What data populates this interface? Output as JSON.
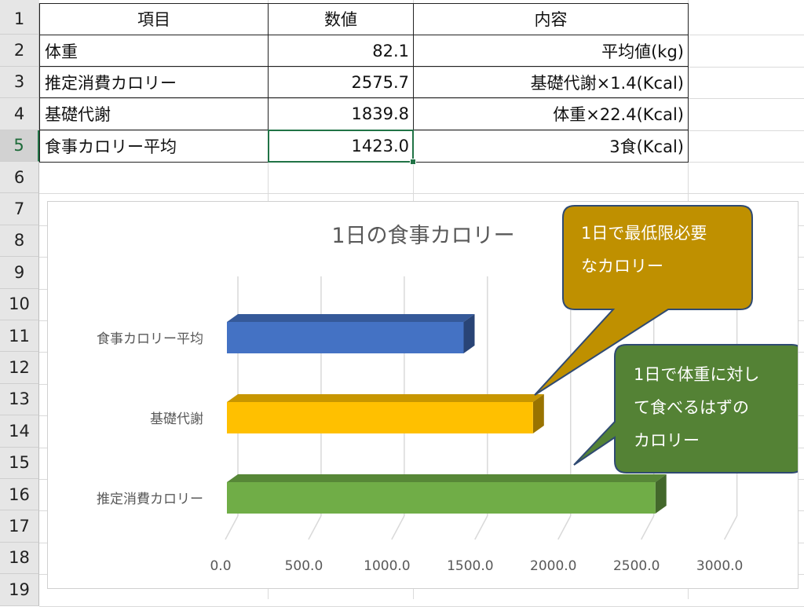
{
  "row_headers": [
    "1",
    "2",
    "3",
    "4",
    "5",
    "6",
    "7",
    "8",
    "9",
    "10",
    "11",
    "12",
    "13",
    "14",
    "15",
    "16",
    "17",
    "18",
    "19"
  ],
  "table": {
    "headers": [
      "項目",
      "数値",
      "内容"
    ],
    "rows": [
      [
        "体重",
        "82.1",
        "平均値(kg)"
      ],
      [
        "推定消費カロリー",
        "2575.7",
        "基礎代謝×1.4(Kcal)"
      ],
      [
        "基礎代謝",
        "1839.8",
        "体重×22.4(Kcal)"
      ],
      [
        "食事カロリー平均",
        "1423.0",
        "3食(Kcal)"
      ]
    ]
  },
  "chart_data": {
    "type": "bar",
    "orientation": "horizontal",
    "title": "1日の食事カロリー",
    "categories": [
      "食事カロリー平均",
      "基礎代謝",
      "推定消費カロリー"
    ],
    "values": [
      1423.0,
      1839.8,
      2575.7
    ],
    "bar_colors": [
      "#4472c4",
      "#ffc000",
      "#70ad47"
    ],
    "xlim": [
      0,
      3000
    ],
    "x_ticks": [
      "0.0",
      "500.0",
      "1000.0",
      "1500.0",
      "2000.0",
      "2500.0",
      "3000.0"
    ],
    "grid": true,
    "style": "3d"
  },
  "callouts": [
    {
      "lines": [
        "1日で最低限必要",
        "なカロリー"
      ],
      "fill": "#bf9000"
    },
    {
      "lines": [
        "1日で体重に対し",
        "て食べるはずの",
        "カロリー"
      ],
      "fill": "#548235"
    }
  ],
  "colors": {
    "selection": "#217346",
    "gridline": "#d9d9d9"
  }
}
